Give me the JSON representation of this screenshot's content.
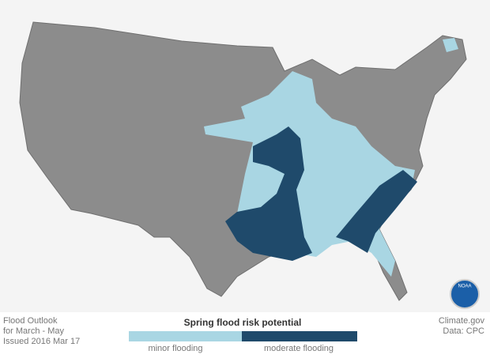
{
  "footer": {
    "left": [
      "Flood Outlook",
      "for March - May",
      "Issued 2016 Mar 17"
    ],
    "legend": {
      "title": "Spring flood risk potential",
      "items": [
        {
          "label": "minor flooding",
          "color": "#a9d6e3"
        },
        {
          "label": "moderate flooding",
          "color": "#1f4a6b"
        }
      ]
    },
    "right": [
      "Climate.gov",
      "Data: CPC"
    ]
  },
  "logo": "NOAA"
}
